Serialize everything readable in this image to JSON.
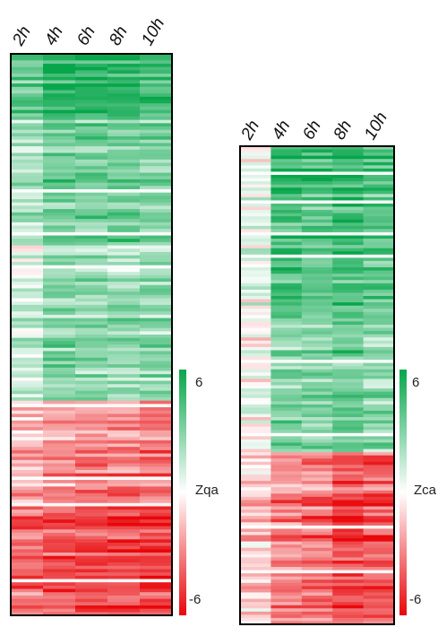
{
  "chart_data": [
    {
      "type": "heatmap",
      "columns": [
        "2h",
        "4h",
        "6h",
        "8h",
        "10h"
      ],
      "color_scale": {
        "min": -6,
        "max": 6,
        "low_color": "#e8070b",
        "mid_color": "#ffffff",
        "high_color": "#07a64b"
      },
      "colorbar": {
        "label": "Zqa",
        "max_label": "6",
        "min_label": "-6"
      },
      "row_count": 170,
      "column_means": [
        [
          3.5,
          4.6,
          4.8,
          4.5,
          4.4
        ],
        [
          2.2,
          3.4,
          3.2,
          3.4,
          3.1
        ],
        [
          1.0,
          2.6,
          2.2,
          2.3,
          2.4
        ],
        [
          -1.8,
          -2.6,
          -2.9,
          -3.0,
          -3.3
        ],
        [
          -3.6,
          -4.2,
          -4.5,
          -4.6,
          -4.9
        ]
      ],
      "segment_fractions": [
        0.12,
        0.22,
        0.28,
        0.18,
        0.2
      ]
    },
    {
      "type": "heatmap",
      "columns": [
        "2h",
        "4h",
        "6h",
        "8h",
        "10h"
      ],
      "color_scale": {
        "min": -6,
        "max": 6,
        "low_color": "#e8070b",
        "mid_color": "#ffffff",
        "high_color": "#07a64b"
      },
      "colorbar": {
        "label": "Zca",
        "max_label": "6",
        "min_label": "-6"
      },
      "row_count": 150,
      "column_means": [
        [
          0.4,
          5.0,
          4.6,
          5.2,
          4.4
        ],
        [
          0.6,
          4.2,
          3.8,
          4.4,
          3.9
        ],
        [
          0.2,
          2.8,
          3.0,
          3.6,
          2.9
        ],
        [
          -0.6,
          -2.2,
          -2.8,
          -3.6,
          -3.4
        ],
        [
          -1.4,
          -3.0,
          -3.6,
          -4.6,
          -4.2
        ]
      ],
      "segment_fractions": [
        0.1,
        0.27,
        0.27,
        0.09,
        0.27
      ]
    }
  ]
}
